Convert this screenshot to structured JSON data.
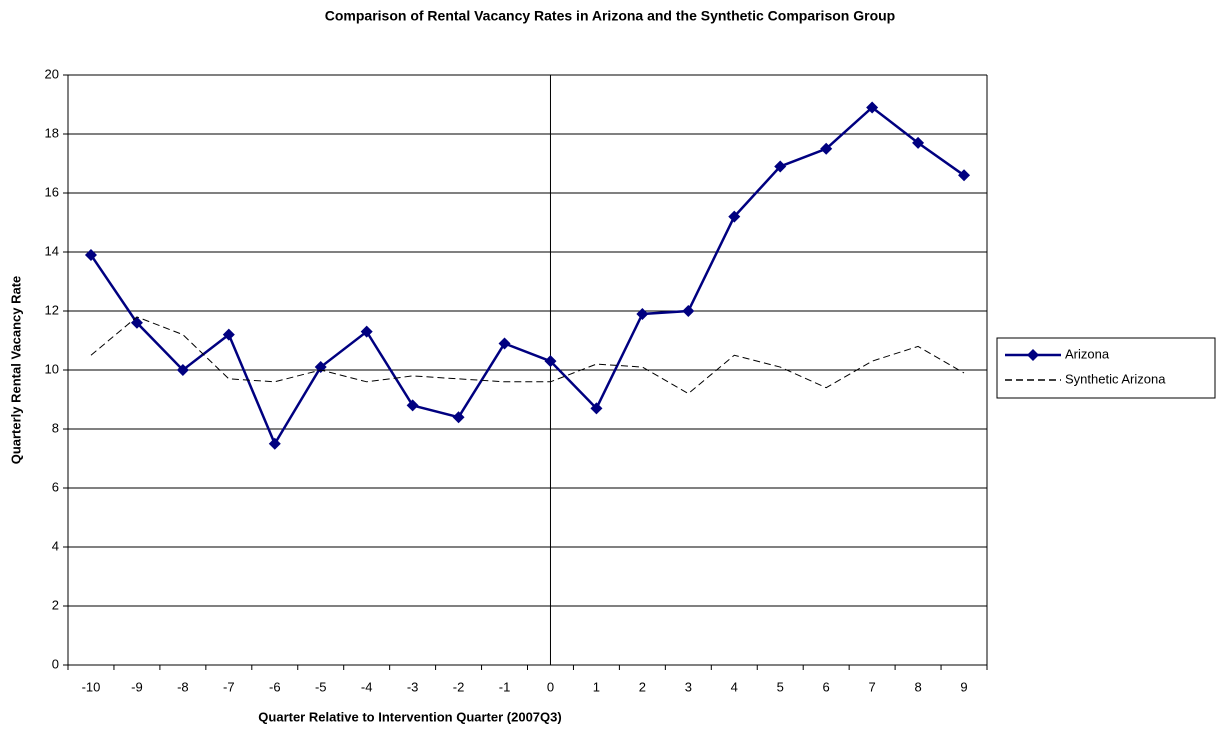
{
  "chart_data": {
    "type": "line",
    "title": "Comparison of Rental Vacancy Rates in Arizona and the Synthetic Comparison Group",
    "x_label": "Quarter Relative to Intervention Quarter (2007Q3)",
    "y_label": "Quarterly Rental Vacancy Rate",
    "categories": [
      -10,
      -9,
      -8,
      -7,
      -6,
      -5,
      -4,
      -3,
      -2,
      -1,
      0,
      1,
      2,
      3,
      4,
      5,
      6,
      7,
      8,
      9
    ],
    "reference_line": 0,
    "series": [
      {
        "name": "Arizona",
        "color": "#000080",
        "marker": "diamond",
        "dashed": false,
        "values": [
          13.9,
          11.6,
          10.0,
          11.2,
          7.5,
          10.1,
          11.3,
          8.8,
          8.4,
          10.9,
          10.3,
          8.7,
          11.9,
          12.0,
          15.2,
          16.9,
          17.5,
          18.9,
          17.7,
          16.6
        ]
      },
      {
        "name": "Synthetic Arizona",
        "color": "#000000",
        "marker": "none",
        "dashed": true,
        "values": [
          10.5,
          11.8,
          11.2,
          9.7,
          9.6,
          10.0,
          9.6,
          9.8,
          9.7,
          9.6,
          9.6,
          10.2,
          10.1,
          9.2,
          10.5,
          10.1,
          9.4,
          10.3,
          10.8,
          9.9
        ]
      }
    ],
    "ylim": [
      0,
      20
    ],
    "yticks": [
      0,
      2,
      4,
      6,
      8,
      10,
      12,
      14,
      16,
      18,
      20
    ],
    "grid": true,
    "legend": "right"
  }
}
